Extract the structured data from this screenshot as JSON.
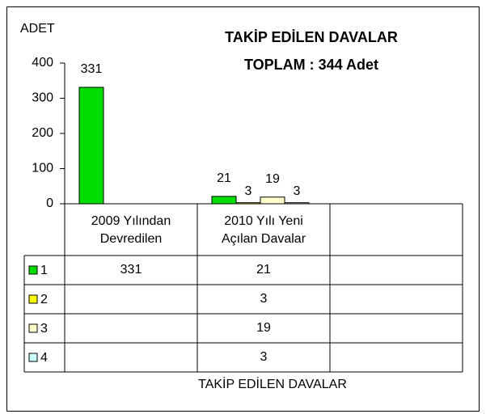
{
  "chart_data": {
    "type": "bar",
    "title": [
      "TAKİP EDİLEN DAVALAR",
      "TOPLAM : 344 Adet"
    ],
    "y_label": "ADET",
    "x_label": "TAKİP EDİLEN DAVALAR",
    "categories": [
      "2009 Yılından\nDevredilen",
      "2010 Yılı Yeni\nAçılan Davalar",
      null
    ],
    "series": [
      {
        "name": "1",
        "color": "#00dd00",
        "values": [
          331,
          21,
          null
        ]
      },
      {
        "name": "2",
        "color": "#ffff00",
        "values": [
          null,
          3,
          null
        ]
      },
      {
        "name": "3",
        "color": "#ffffcc",
        "values": [
          null,
          19,
          null
        ]
      },
      {
        "name": "4",
        "color": "#ccffff",
        "values": [
          null,
          3,
          null
        ]
      }
    ],
    "ylim": [
      0,
      400
    ],
    "yticks": [
      0,
      100,
      200,
      300,
      400
    ],
    "grid": false,
    "data_table": true
  }
}
